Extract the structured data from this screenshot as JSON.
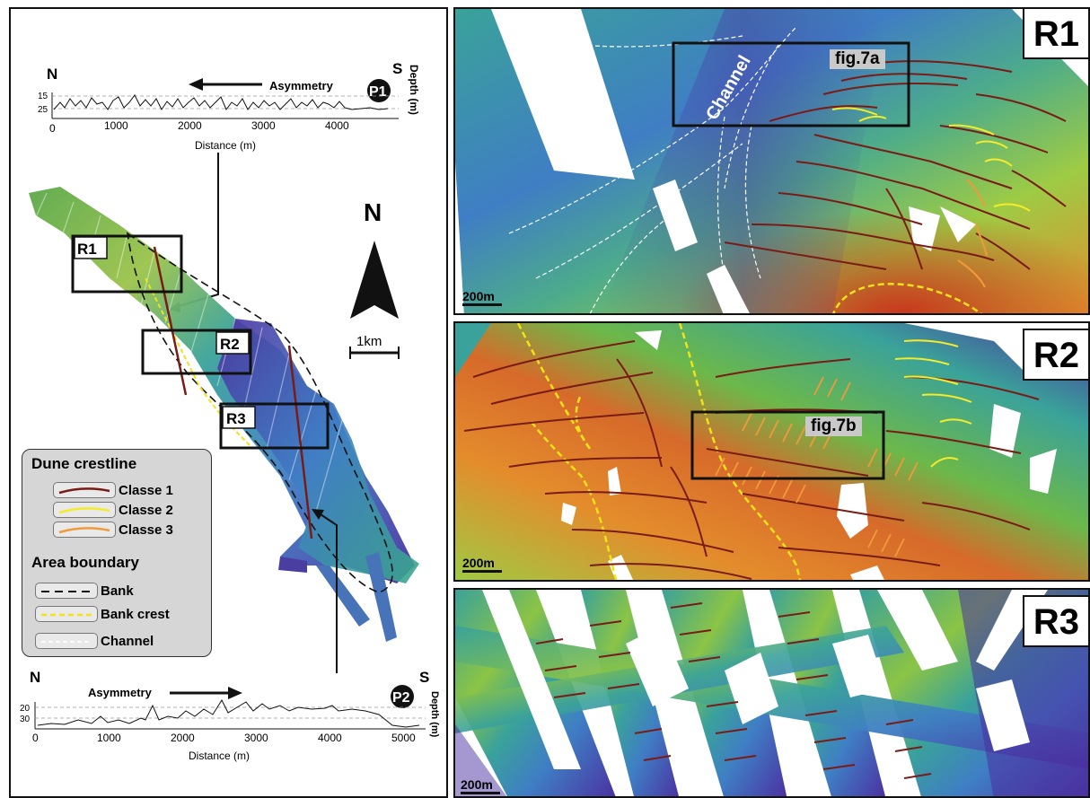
{
  "profile_p1": {
    "label": "P1",
    "north": "N",
    "south": "S",
    "asymmetry": "Asymmetry",
    "y_label": "Depth (m)",
    "y_ticks": [
      "15",
      "25"
    ],
    "x_ticks": [
      "0",
      "1000",
      "2000",
      "3000",
      "4000"
    ],
    "x_label": "Distance (m)"
  },
  "profile_p2": {
    "label": "P2",
    "north": "N",
    "south": "S",
    "asymmetry": "Asymmetry",
    "y_label": "Depth (m)",
    "y_ticks": [
      "20",
      "30"
    ],
    "x_ticks": [
      "0",
      "1000",
      "2000",
      "3000",
      "4000",
      "5000"
    ],
    "x_label": "Distance (m)"
  },
  "overview": {
    "north_arrow": "N",
    "scale": "1km",
    "boxes": [
      "R1",
      "R2",
      "R3"
    ]
  },
  "legend": {
    "crest_title": "Dune crestline",
    "classes": [
      {
        "label": "Classe 1",
        "color": "#7a1c16"
      },
      {
        "label": "Classe 2",
        "color": "#f4ec2a"
      },
      {
        "label": "Classe 3",
        "color": "#f09a3a"
      }
    ],
    "area_title": "Area boundary",
    "areas": [
      {
        "label": "Bank",
        "color": "#111111"
      },
      {
        "label": "Bank crest",
        "color": "#f2e21a"
      },
      {
        "label": "Channel",
        "color": "#ffffff"
      }
    ]
  },
  "panels": {
    "r1": {
      "tag": "R1",
      "figure_box": "fig.7a",
      "channel": "Channel",
      "scale": "200m"
    },
    "r2": {
      "tag": "R2",
      "figure_box": "fig.7b",
      "scale": "200m"
    },
    "r3": {
      "tag": "R3",
      "scale": "200m"
    }
  },
  "colors": {
    "deep": "#4b2fa0",
    "mid_deep": "#3f7ec4",
    "mid": "#3aa29a",
    "shallow": "#62b94a",
    "crest": "#e48c2c",
    "top": "#c9341c"
  }
}
